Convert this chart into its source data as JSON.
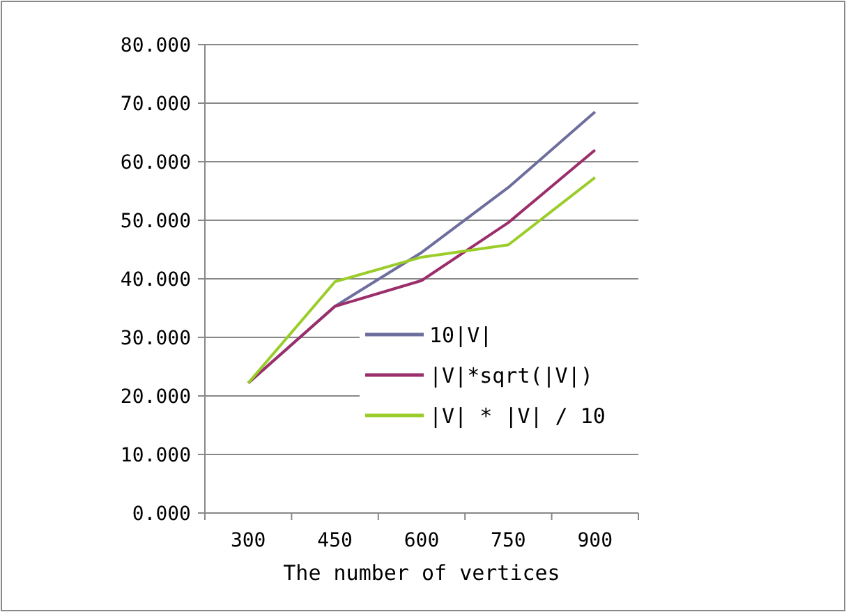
{
  "chart_data": {
    "type": "line",
    "xlabel": "The number of vertices",
    "categories": [
      "300",
      "450",
      "600",
      "750",
      "900"
    ],
    "series": [
      {
        "name": "10|V|",
        "color": "#6e6e9e",
        "values": [
          22.2,
          35.3,
          44.5,
          55.6,
          68.5
        ]
      },
      {
        "name": "|V|*sqrt(|V|)",
        "color": "#9b2f6b",
        "values": [
          22.2,
          35.3,
          39.7,
          49.6,
          62.0
        ]
      },
      {
        "name": "|V| * |V| / 10",
        "color": "#9acd2a",
        "values": [
          22.2,
          39.5,
          43.7,
          45.8,
          57.3
        ]
      }
    ],
    "ylim": [
      0,
      80
    ],
    "yticks": [
      {
        "value": 0,
        "label": "0.000"
      },
      {
        "value": 10,
        "label": "10.000"
      },
      {
        "value": 20,
        "label": "20.000"
      },
      {
        "value": 30,
        "label": "30.000"
      },
      {
        "value": 40,
        "label": "40.000"
      },
      {
        "value": 50,
        "label": "50.000"
      },
      {
        "value": 60,
        "label": "60.000"
      },
      {
        "value": 70,
        "label": "70.000"
      },
      {
        "value": 80,
        "label": "80.000"
      }
    ],
    "grid": "y",
    "legend": "bottom right",
    "marker": "none",
    "line_style": "solid"
  }
}
